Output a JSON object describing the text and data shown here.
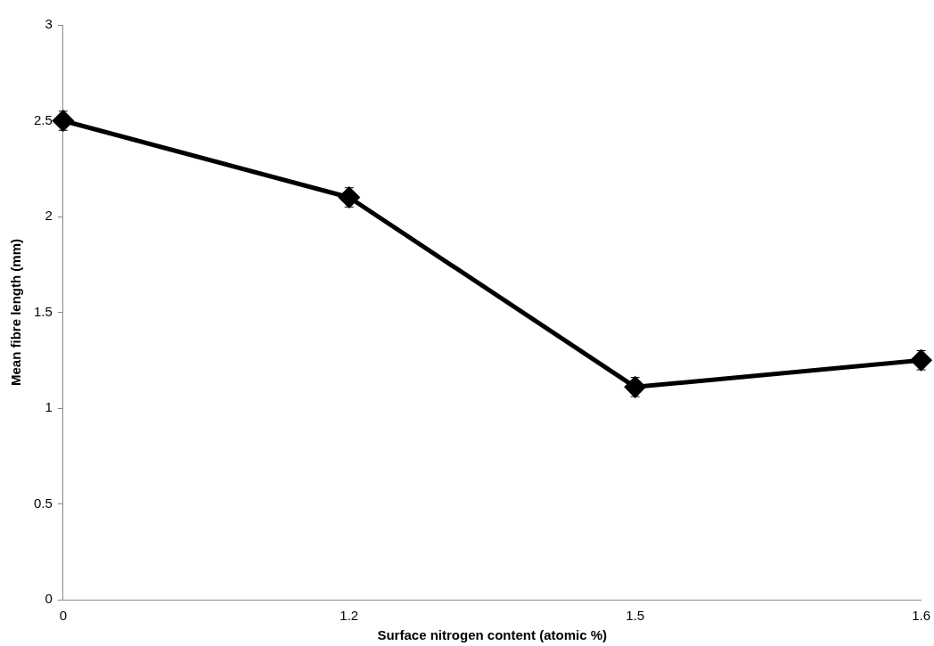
{
  "chart_data": {
    "type": "line",
    "xlabel": "Surface nitrogen content (atomic %)",
    "ylabel": "Mean fibre length (mm)",
    "categories": [
      "0",
      "1.2",
      "1.5",
      "1.6"
    ],
    "series": [
      {
        "color": "#000000",
        "values": [
          2.5,
          2.1,
          1.11,
          1.25
        ],
        "errors": [
          0.05,
          0.05,
          0.05,
          0.05
        ]
      }
    ],
    "ylim": [
      0,
      3
    ],
    "yticks": [
      0,
      0.5,
      1,
      1.5,
      2,
      2.5,
      3
    ],
    "grid": false,
    "legend": false,
    "marker": "diamond",
    "line_style": "solid"
  }
}
